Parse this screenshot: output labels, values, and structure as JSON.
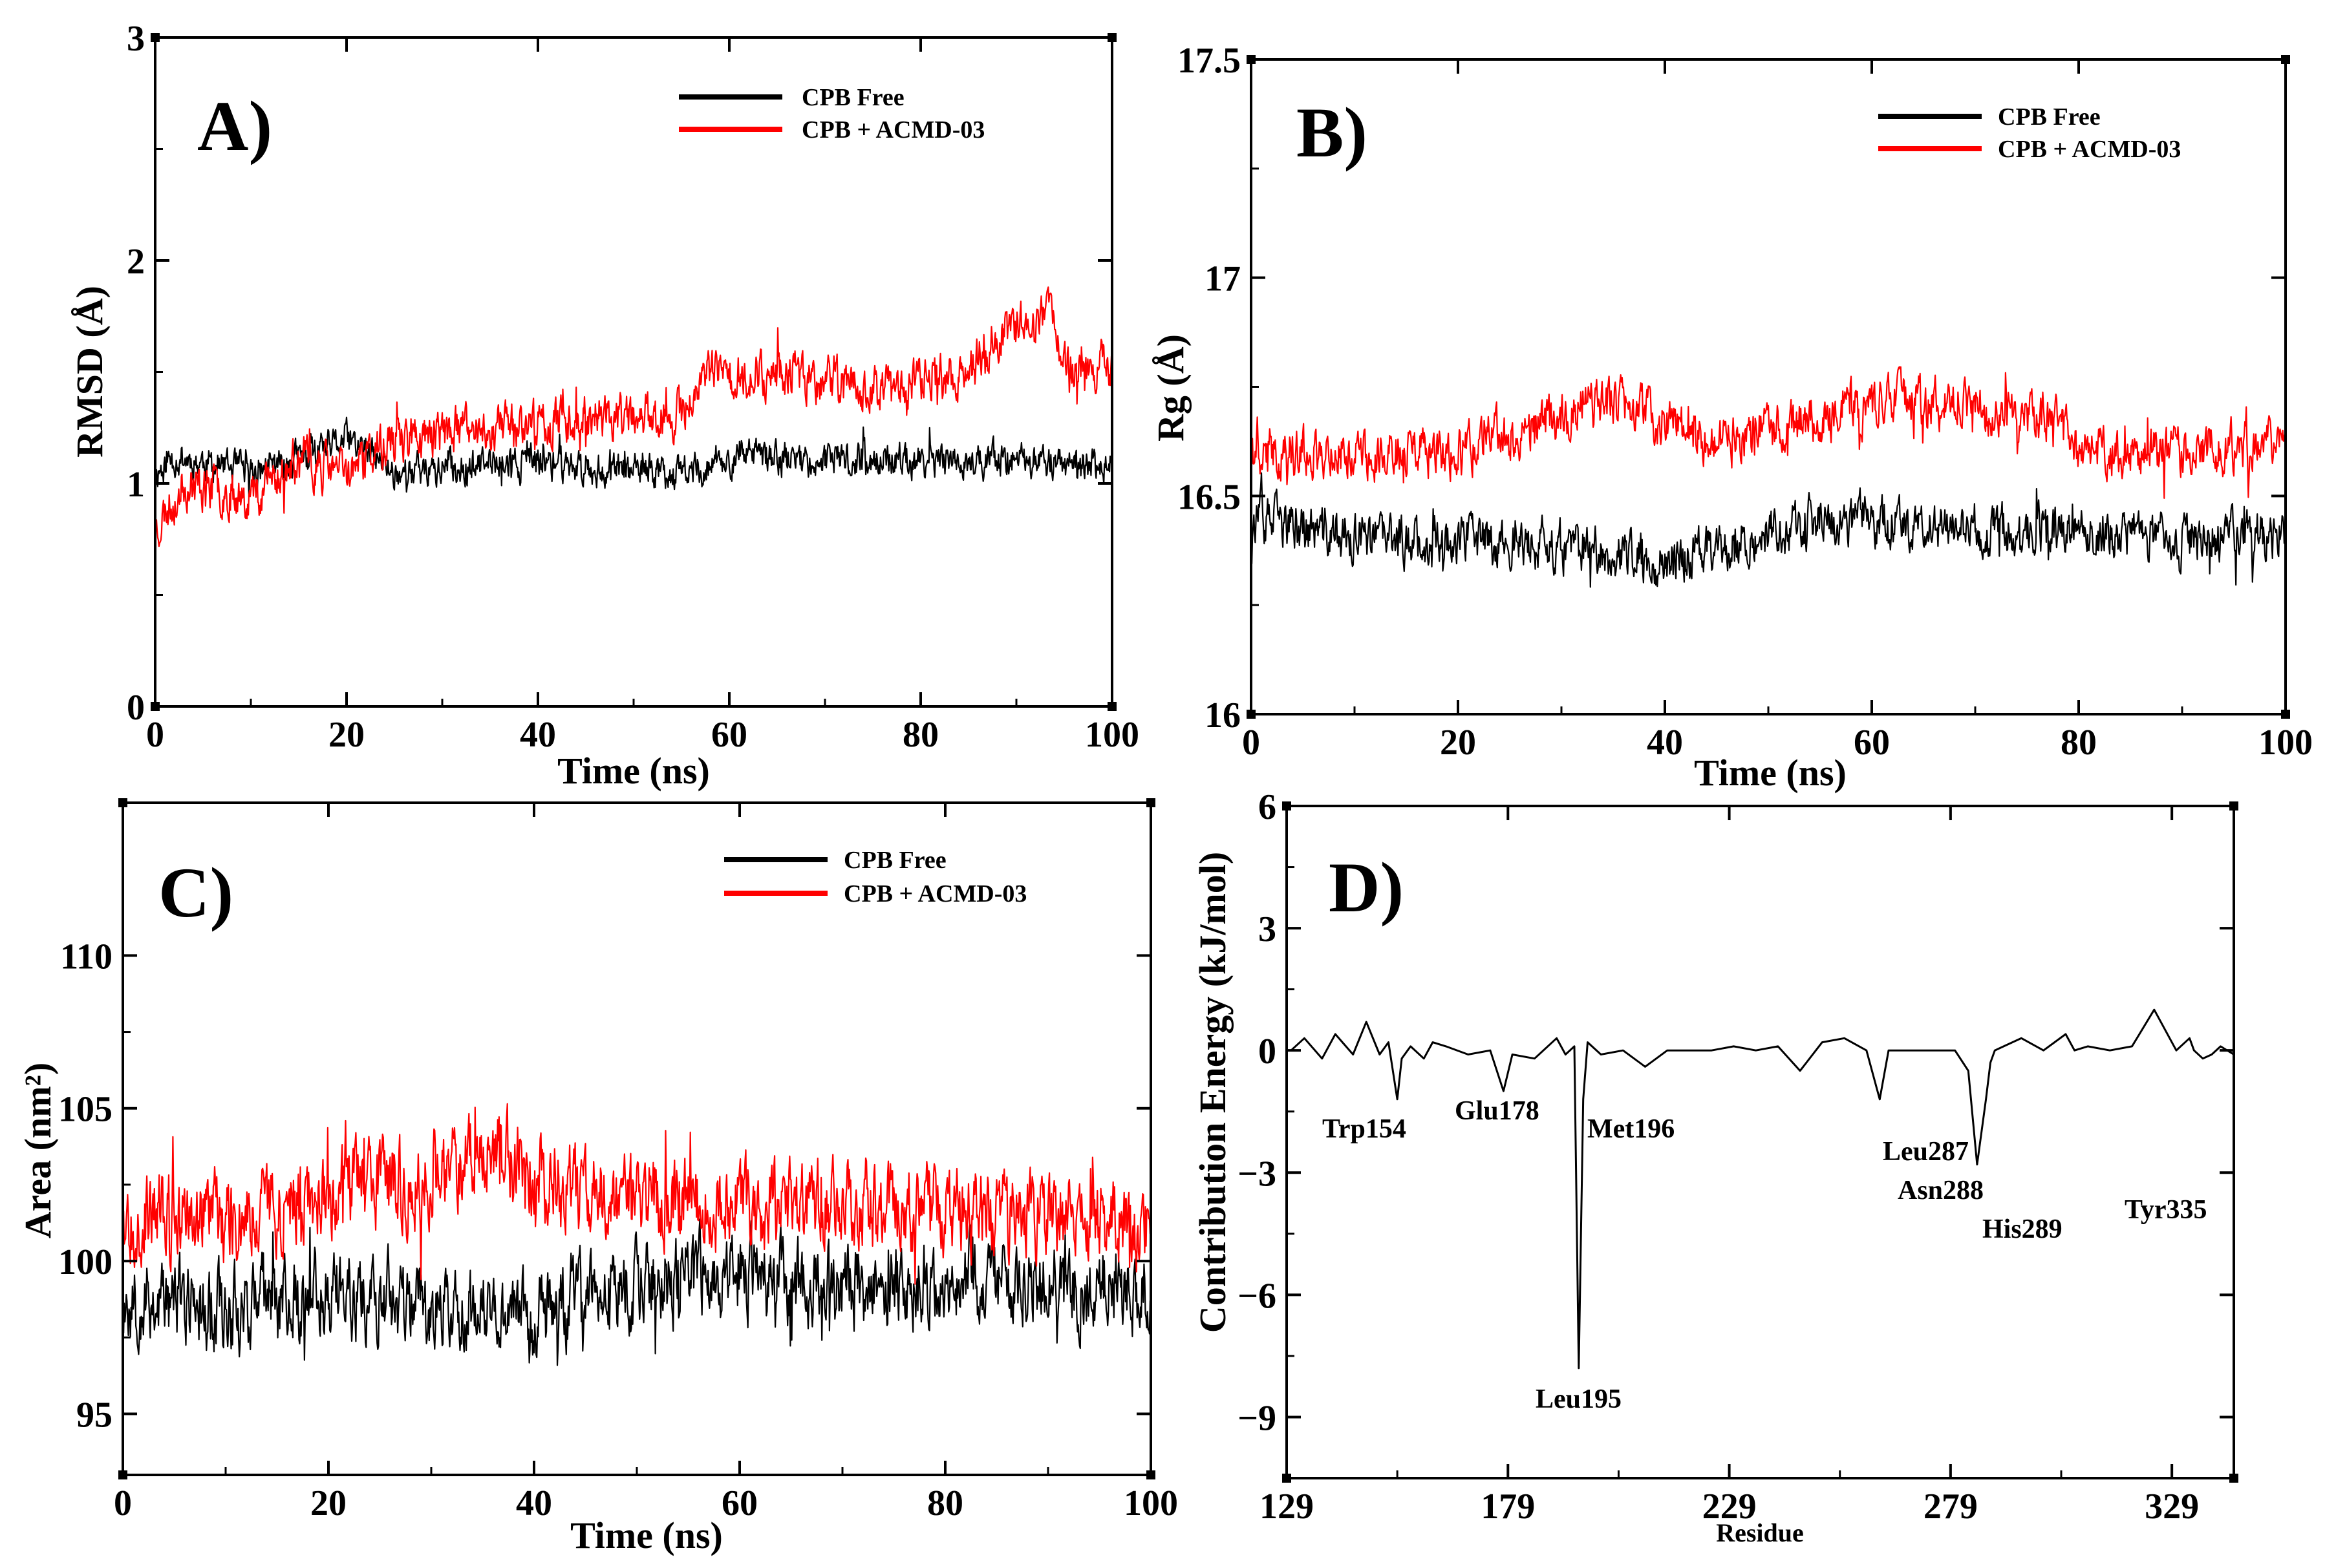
{
  "colors": {
    "free": "#000000",
    "ligand": "#ff0000",
    "axis": "#000000",
    "background": "#ffffff"
  },
  "chart_data": [
    {
      "id": "A",
      "type": "line",
      "panel_label": "A)",
      "xlabel": "Time (ns)",
      "ylabel": "RMSD (Å)",
      "xlim": [
        0,
        100
      ],
      "ylim": [
        0,
        3
      ],
      "xticks": [
        0,
        20,
        40,
        60,
        80,
        100
      ],
      "yticks": [
        0,
        1,
        2,
        3
      ],
      "legend": [
        "CPB Free",
        "CPB + ACMD-03"
      ],
      "series": [
        {
          "name": "CPB Free",
          "color": "#000000",
          "noise": 0.06,
          "seed": 11,
          "x": [
            0,
            2,
            10,
            18,
            20,
            25,
            40,
            50,
            55,
            62,
            70,
            80,
            90,
            100
          ],
          "y": [
            1.05,
            1.12,
            1.05,
            1.15,
            1.2,
            1.05,
            1.1,
            1.05,
            1.05,
            1.12,
            1.1,
            1.1,
            1.1,
            1.08
          ]
        },
        {
          "name": "CPB + ACMD-03",
          "color": "#ff0000",
          "noise": 0.08,
          "seed": 23,
          "x": [
            0,
            3,
            10,
            15,
            20,
            25,
            35,
            45,
            55,
            57,
            65,
            75,
            85,
            88,
            93,
            96,
            100
          ],
          "y": [
            0.8,
            1.0,
            0.95,
            1.1,
            1.05,
            1.2,
            1.25,
            1.3,
            1.3,
            1.48,
            1.5,
            1.42,
            1.5,
            1.65,
            1.78,
            1.5,
            1.55
          ]
        }
      ]
    },
    {
      "id": "B",
      "type": "line",
      "panel_label": "B)",
      "xlabel": "Time (ns)",
      "ylabel": "Rg (Å)",
      "xlim": [
        0,
        100
      ],
      "ylim": [
        16,
        17.5
      ],
      "xticks": [
        0,
        20,
        40,
        60,
        80,
        100
      ],
      "yticks": [
        16,
        16.5,
        17,
        17.5
      ],
      "ytick_labels": [
        "16",
        "16.5",
        "17",
        "17.5"
      ],
      "legend": [
        "CPB Free",
        "CPB + ACMD-03"
      ],
      "series": [
        {
          "name": "CPB Free",
          "color": "#000000",
          "noise": 0.045,
          "seed": 37,
          "x": [
            0,
            10,
            20,
            30,
            40,
            50,
            60,
            70,
            80,
            90,
            100
          ],
          "y": [
            16.45,
            16.4,
            16.4,
            16.38,
            16.35,
            16.42,
            16.45,
            16.42,
            16.42,
            16.4,
            16.42
          ]
        },
        {
          "name": "CPB + ACMD-03",
          "color": "#ff0000",
          "noise": 0.045,
          "seed": 41,
          "x": [
            0,
            10,
            20,
            30,
            35,
            45,
            55,
            62,
            70,
            77,
            80,
            90,
            100
          ],
          "y": [
            16.6,
            16.6,
            16.6,
            16.68,
            16.72,
            16.62,
            16.68,
            16.72,
            16.7,
            16.68,
            16.6,
            16.6,
            16.62
          ]
        }
      ]
    },
    {
      "id": "C",
      "type": "line",
      "panel_label": "C)",
      "xlabel": "Time (ns)",
      "ylabel": "Area (nm²)",
      "xlim": [
        0,
        100
      ],
      "ylim": [
        93,
        115
      ],
      "xticks": [
        0,
        20,
        40,
        60,
        80,
        100
      ],
      "yticks": [
        95,
        100,
        105,
        110
      ],
      "legend": [
        "CPB Free",
        "CPB + ACMD-03"
      ],
      "series": [
        {
          "name": "CPB Free",
          "color": "#000000",
          "noise": 1.1,
          "seed": 53,
          "x": [
            0,
            10,
            20,
            30,
            40,
            50,
            60,
            70,
            80,
            90,
            100
          ],
          "y": [
            98.8,
            98.5,
            99.0,
            98.5,
            98.2,
            99.3,
            99.5,
            99.2,
            99.5,
            99.3,
            99.0
          ]
        },
        {
          "name": "CPB + ACMD-03",
          "color": "#ff0000",
          "noise": 1.1,
          "seed": 67,
          "x": [
            0,
            10,
            20,
            30,
            35,
            45,
            55,
            65,
            75,
            85,
            100
          ],
          "y": [
            101.5,
            101.5,
            102.2,
            102.8,
            103.8,
            102.2,
            102.0,
            101.8,
            101.8,
            101.5,
            101.2
          ]
        }
      ]
    },
    {
      "id": "D",
      "type": "line",
      "panel_label": "D)",
      "xlabel": "Residue",
      "ylabel": "Contribution Energy (kJ/mol)",
      "xlim": [
        129,
        343
      ],
      "ylim": [
        -10.5,
        6
      ],
      "xticks": [
        129,
        179,
        229,
        279,
        329
      ],
      "yticks": [
        -9,
        -6,
        -3,
        0,
        3,
        6
      ],
      "ytick_labels": [
        "−9",
        "−6",
        "−3",
        "0",
        "3",
        "6"
      ],
      "series": [
        {
          "name": "Contribution Energy",
          "color": "#000000",
          "x": [
            130,
            133,
            137,
            140,
            144,
            147,
            150,
            152,
            154,
            155,
            157,
            160,
            162,
            165,
            170,
            175,
            178,
            180,
            185,
            190,
            192,
            194,
            195,
            196,
            197,
            200,
            205,
            210,
            215,
            220,
            225,
            230,
            235,
            240,
            245,
            250,
            255,
            260,
            263,
            265,
            268,
            270,
            275,
            280,
            283,
            285,
            287,
            288,
            289,
            291,
            295,
            300,
            305,
            307,
            310,
            315,
            320,
            325,
            330,
            333,
            334,
            336,
            338,
            340,
            343
          ],
          "y": [
            0,
            0.3,
            -0.2,
            0.4,
            -0.1,
            0.7,
            -0.1,
            0.2,
            -1.2,
            -0.2,
            0.1,
            -0.2,
            0.2,
            0.1,
            -0.1,
            0.0,
            -1.0,
            -0.1,
            -0.2,
            0.3,
            -0.1,
            0.1,
            -7.8,
            -1.2,
            0.2,
            -0.1,
            0.0,
            -0.4,
            0.0,
            0.0,
            0.0,
            0.1,
            0.0,
            0.1,
            -0.5,
            0.2,
            0.3,
            0.0,
            -1.2,
            0.0,
            0.0,
            0.0,
            0.0,
            0.0,
            -0.5,
            -2.8,
            -1.2,
            -0.3,
            0.0,
            0.1,
            0.3,
            0.0,
            0.4,
            0.0,
            0.1,
            0.0,
            0.1,
            1.0,
            0.0,
            0.3,
            0.0,
            -0.2,
            -0.1,
            0.1,
            -0.1
          ]
        }
      ],
      "annotations": [
        "Trp154",
        "Glu178",
        "Met196",
        "Leu195",
        "Leu287",
        "Asn288",
        "His289",
        "Tyr335"
      ]
    }
  ]
}
